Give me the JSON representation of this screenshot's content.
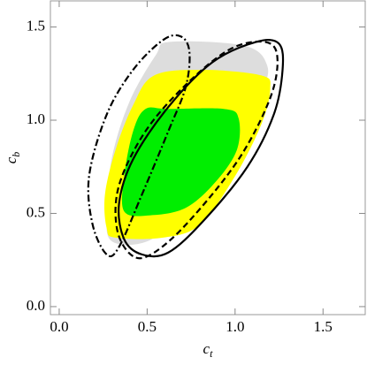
{
  "chart_data": {
    "type": "contour",
    "x_label": "ct",
    "y_label": "cb",
    "xlim": [
      -0.05,
      1.74
    ],
    "ylim": [
      -0.043,
      1.64
    ],
    "xticks": [
      {
        "value": 0,
        "label": "0.0"
      },
      0.5,
      {
        "value": 1,
        "label": "1.0"
      },
      1.5
    ],
    "yticks": [
      {
        "value": 0,
        "label": "0.0"
      },
      0.5,
      {
        "value": 1,
        "label": "1.0"
      },
      1.5
    ],
    "series": [
      {
        "style": "filled",
        "color": "#dddddd",
        "x": [
          0.3,
          0.27,
          0.3,
          0.4,
          0.55,
          0.63,
          1.05,
          1.18,
          1.15,
          0.95,
          0.7,
          0.5
        ],
        "y": [
          0.35,
          0.5,
          0.8,
          1.1,
          1.35,
          1.42,
          1.4,
          1.3,
          1.15,
          0.8,
          0.5,
          0.35
        ]
      },
      {
        "style": "filled",
        "color": "#ffff00",
        "x": [
          0.27,
          0.26,
          0.32,
          0.42,
          0.54,
          0.82,
          1.15,
          1.2,
          1.15,
          1.0,
          0.8,
          0.59,
          0.32
        ],
        "y": [
          0.42,
          0.6,
          0.84,
          1.08,
          1.24,
          1.27,
          1.24,
          1.17,
          0.98,
          0.7,
          0.44,
          0.37,
          0.37
        ]
      },
      {
        "style": "filled",
        "color": "#00ee00",
        "x": [
          0.37,
          0.37,
          0.42,
          0.49,
          0.62,
          0.94,
          1.02,
          1.01,
          0.89,
          0.72,
          0.52
        ],
        "y": [
          0.51,
          0.7,
          0.94,
          1.06,
          1.06,
          1.06,
          1.01,
          0.84,
          0.67,
          0.53,
          0.49
        ]
      },
      {
        "style": "solid",
        "color": "#000000",
        "x": [
          0.47,
          0.37,
          0.34,
          0.42,
          0.62,
          0.87,
          1.12,
          1.25,
          1.27,
          1.22,
          1.07,
          0.82,
          0.62
        ],
        "y": [
          0.28,
          0.36,
          0.55,
          0.79,
          1.07,
          1.31,
          1.42,
          1.41,
          1.27,
          1.03,
          0.75,
          0.46,
          0.29
        ]
      },
      {
        "style": "dashed",
        "color": "#000000",
        "x": [
          0.42,
          0.33,
          0.34,
          0.49,
          0.72,
          0.97,
          1.17,
          1.24,
          1.2,
          1.02,
          0.74,
          0.54
        ],
        "y": [
          0.27,
          0.41,
          0.65,
          0.94,
          1.19,
          1.38,
          1.42,
          1.34,
          1.12,
          0.79,
          0.46,
          0.29
        ]
      },
      {
        "style": "dashdot",
        "color": "#000000",
        "x": [
          0.27,
          0.19,
          0.17,
          0.27,
          0.42,
          0.59,
          0.69,
          0.74,
          0.72,
          0.62,
          0.47,
          0.34
        ],
        "y": [
          0.28,
          0.44,
          0.7,
          1.03,
          1.27,
          1.43,
          1.45,
          1.37,
          1.18,
          0.94,
          0.6,
          0.32
        ]
      }
    ]
  }
}
